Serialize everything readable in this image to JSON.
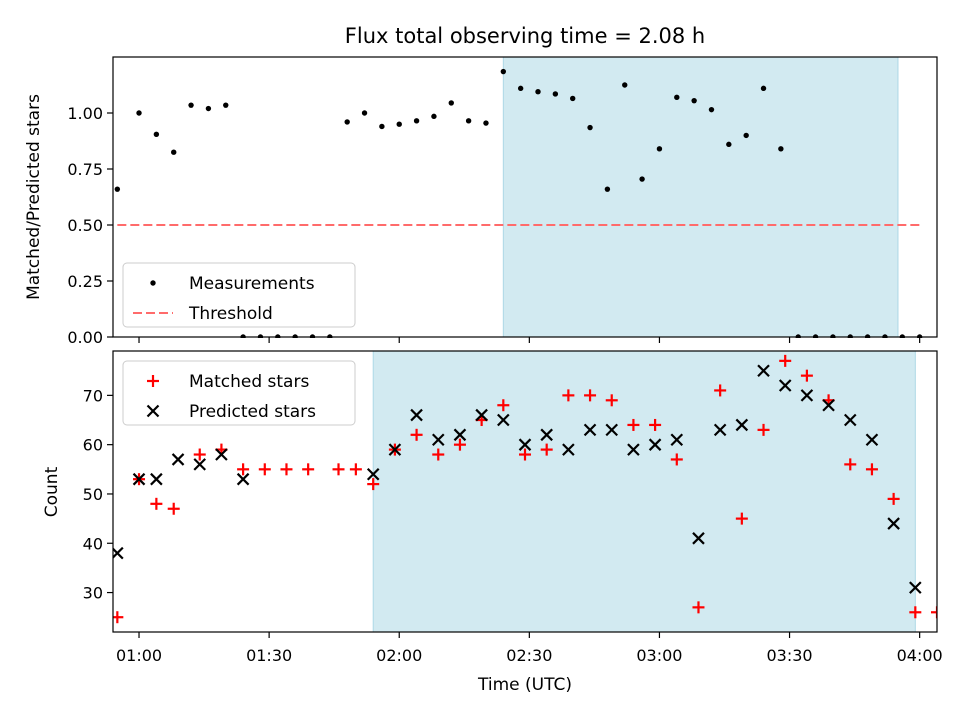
{
  "title": "Flux total observing time = 2.08 h",
  "colors": {
    "band": "#add8e6",
    "threshold": "#ff6b6b",
    "matched": "#ff0000",
    "predicted": "#000000",
    "measurement": "#000000"
  },
  "chart_data": [
    {
      "type": "scatter",
      "panel": "top",
      "ylabel": "Matched/Predicted stars",
      "xlabel": "",
      "xlim": [
        -6,
        184
      ],
      "ylim": [
        0,
        1.25
      ],
      "yticks": [
        0,
        0.25,
        0.5,
        0.75,
        1.0
      ],
      "ytick_labels": [
        "0.00",
        "0.25",
        "0.50",
        "0.75",
        "1.00"
      ],
      "band": {
        "x0": 84,
        "x1": 175
      },
      "legend": {
        "position": "lower-left",
        "entries": [
          "Measurements",
          "Threshold"
        ]
      },
      "threshold": {
        "name": "Threshold",
        "y": 0.5,
        "x0": -5,
        "x1": 180
      },
      "series": [
        {
          "name": "Measurements",
          "marker": "dot",
          "x": [
            -5,
            0,
            4,
            8,
            12,
            16,
            20,
            24,
            28,
            32,
            36,
            40,
            44,
            48,
            52,
            56,
            60,
            64,
            68,
            72,
            76,
            80,
            84,
            88,
            92,
            96,
            100,
            104,
            108,
            112,
            116,
            120,
            124,
            128,
            132,
            136,
            140,
            144,
            148,
            152,
            156,
            160,
            164,
            168,
            172,
            176,
            180
          ],
          "y": [
            0.66,
            1.0,
            0.905,
            0.825,
            1.035,
            1.02,
            1.035,
            0,
            0,
            0,
            0,
            0,
            0,
            0.96,
            1.0,
            0.94,
            0.95,
            0.965,
            0.985,
            1.045,
            0.965,
            0.955,
            1.185,
            1.11,
            1.095,
            1.085,
            1.065,
            0.935,
            0.66,
            1.125,
            0.705,
            0.84,
            1.07,
            1.055,
            1.015,
            0.86,
            0.9,
            1.11,
            0.84,
            0.0,
            0,
            0,
            0,
            0,
            0,
            0,
            0
          ]
        }
      ]
    },
    {
      "type": "scatter",
      "panel": "bottom",
      "ylabel": "Count",
      "xlabel": "Time (UTC)",
      "xlim": [
        -6,
        184
      ],
      "ylim": [
        22,
        79
      ],
      "yticks": [
        30,
        40,
        50,
        60,
        70
      ],
      "xticks": [
        0,
        30,
        60,
        90,
        120,
        150,
        180
      ],
      "xtick_labels": [
        "01:00",
        "01:30",
        "02:00",
        "02:30",
        "03:00",
        "03:30",
        "04:00"
      ],
      "band": {
        "x0": 54,
        "x1": 179
      },
      "legend": {
        "position": "top-left",
        "entries": [
          "Matched stars",
          "Predicted stars"
        ]
      },
      "series": [
        {
          "name": "Matched stars",
          "marker": "plus",
          "x": [
            -5,
            0,
            4,
            8,
            14,
            19,
            24,
            29,
            34,
            39,
            46,
            50,
            54,
            59,
            64,
            69,
            74,
            79,
            84,
            89,
            94,
            99,
            104,
            109,
            114,
            119,
            124,
            129,
            134,
            139,
            144,
            149,
            154,
            159,
            164,
            169,
            174,
            179,
            184
          ],
          "y": [
            25,
            53,
            48,
            47,
            58,
            59,
            55,
            55,
            55,
            55,
            55,
            55,
            52,
            59,
            62,
            58,
            60,
            65,
            68,
            58,
            59,
            70,
            70,
            69,
            64,
            64,
            57,
            27,
            71,
            45,
            63,
            77,
            74,
            69,
            56,
            55,
            49,
            26,
            26
          ]
        },
        {
          "name": "Predicted stars",
          "marker": "cross",
          "x": [
            -5,
            0,
            4,
            9,
            14,
            19,
            24,
            54,
            59,
            64,
            69,
            74,
            79,
            84,
            89,
            94,
            99,
            104,
            109,
            114,
            119,
            124,
            129,
            134,
            139,
            144,
            149,
            154,
            159,
            164,
            169,
            174,
            179
          ],
          "y": [
            38,
            53,
            53,
            57,
            56,
            58,
            53,
            54,
            59,
            66,
            61,
            62,
            66,
            65,
            60,
            62,
            59,
            63,
            63,
            59,
            60,
            61,
            41,
            63,
            64,
            75,
            72,
            70,
            68,
            65,
            61,
            44,
            31
          ]
        }
      ]
    }
  ]
}
